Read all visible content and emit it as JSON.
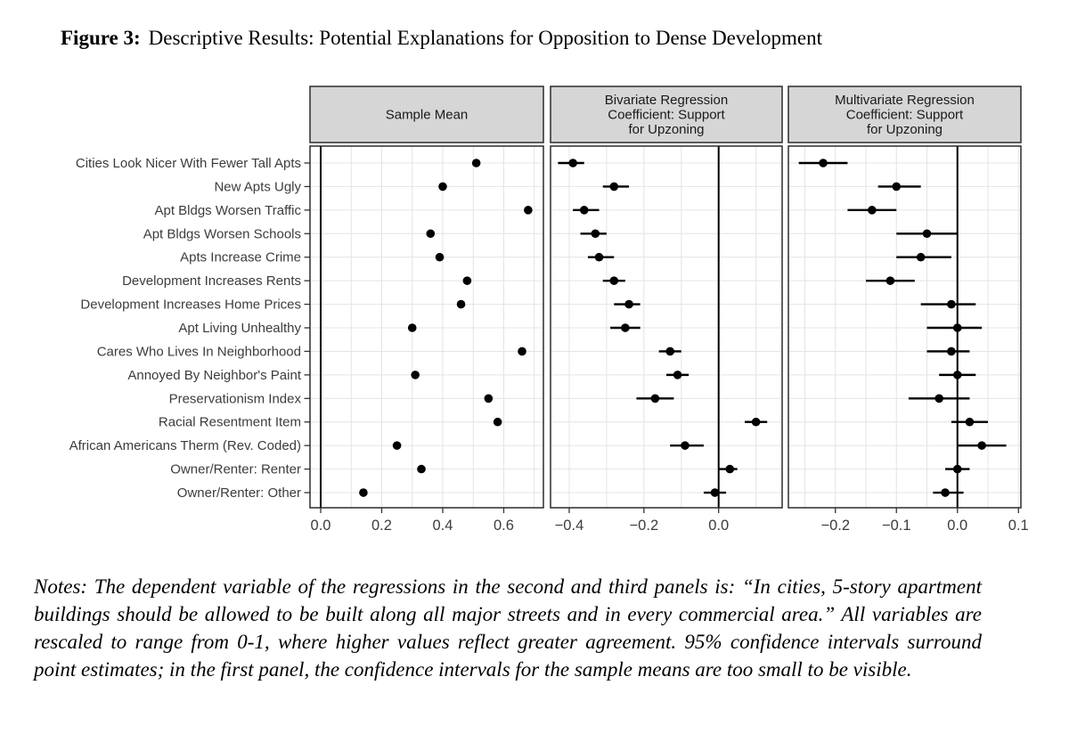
{
  "title": {
    "label": "Figure 3:",
    "caption": "Descriptive Results: Potential Explanations for Opposition to Dense Development"
  },
  "notes": "Notes:  The dependent variable of the regressions in the second and third panels is: “In cities, 5-story apartment buildings should be allowed to be built along all major streets and in every commercial area.” All variables are rescaled to range from 0-1, where higher values reflect greater agreement. 95% confidence intervals surround point estimates; in the first panel, the confidence intervals for the sample means are too small to be visible.",
  "colors": {
    "strip_fill": "#d6d6d6",
    "panel_border": "#2b2b2b",
    "grid": "#e4e4e4",
    "point": "#000000",
    "zero_line": "#000000",
    "axis_text": "#3c3c3c",
    "strip_text": "#1a1a1a",
    "tick_mark": "#333333"
  },
  "chart_data": {
    "type": "scatter",
    "subtype": "coefficient-dot-whisker",
    "title": "Figure 3: Descriptive Results: Potential Explanations for Opposition to Dense Development",
    "grid": "on",
    "rows": [
      "Cities Look Nicer With Fewer Tall Apts",
      "New Apts Ugly",
      "Apt Bldgs Worsen Traffic",
      "Apt Bldgs Worsen Schools",
      "Apts Increase Crime",
      "Development Increases Rents",
      "Development Increases Home Prices",
      "Apt Living Unhealthy",
      "Cares Who Lives In Neighborhood",
      "Annoyed By Neighbor's Paint",
      "Preservationism Index",
      "Racial Resentment Item",
      "African Americans Therm (Rev. Coded)",
      "Owner/Renter: Renter",
      "Owner/Renter: Other"
    ],
    "panels": [
      {
        "id": "sample-mean",
        "title_lines": [
          "Sample Mean"
        ],
        "xlim": [
          -0.035,
          0.73
        ],
        "ticks": [
          {
            "v": 0.0,
            "label": "0.0"
          },
          {
            "v": 0.2,
            "label": "0.2"
          },
          {
            "v": 0.4,
            "label": "0.4"
          },
          {
            "v": 0.6,
            "label": "0.6"
          }
        ],
        "grid_values": [
          0.0,
          0.1,
          0.2,
          0.3,
          0.4,
          0.5,
          0.6,
          0.7
        ],
        "zero_line": true,
        "estimates": [
          0.51,
          0.4,
          0.68,
          0.36,
          0.39,
          0.48,
          0.46,
          0.3,
          0.66,
          0.31,
          0.55,
          0.58,
          0.25,
          0.33,
          0.14
        ],
        "ci_low": null,
        "ci_high": null
      },
      {
        "id": "bivariate-regression",
        "title_lines": [
          "Bivariate Regression",
          "Coefficient: Support",
          "for Upzoning"
        ],
        "xlim": [
          -0.45,
          0.17
        ],
        "ticks": [
          {
            "v": -0.4,
            "label": "−0.4"
          },
          {
            "v": -0.2,
            "label": "−0.2"
          },
          {
            "v": 0.0,
            "label": "0.0"
          }
        ],
        "grid_values": [
          -0.4,
          -0.3,
          -0.2,
          -0.1,
          0.0,
          0.1
        ],
        "zero_line": true,
        "estimates": [
          -0.39,
          -0.28,
          -0.36,
          -0.33,
          -0.32,
          -0.28,
          -0.24,
          -0.25,
          -0.13,
          -0.11,
          -0.17,
          0.1,
          -0.09,
          0.03,
          -0.01
        ],
        "ci_low": [
          -0.43,
          -0.31,
          -0.39,
          -0.37,
          -0.35,
          -0.31,
          -0.28,
          -0.29,
          -0.16,
          -0.14,
          -0.22,
          0.07,
          -0.13,
          0.0,
          -0.04
        ],
        "ci_high": [
          -0.36,
          -0.24,
          -0.32,
          -0.3,
          -0.28,
          -0.25,
          -0.21,
          -0.21,
          -0.1,
          -0.08,
          -0.12,
          0.13,
          -0.04,
          0.05,
          0.02
        ]
      },
      {
        "id": "multivariate-regression",
        "title_lines": [
          "Multivariate Regression",
          "Coefficient: Support",
          "for Upzoning"
        ],
        "xlim": [
          -0.277,
          0.104
        ],
        "ticks": [
          {
            "v": -0.2,
            "label": "−0.2"
          },
          {
            "v": -0.1,
            "label": "−0.1"
          },
          {
            "v": 0.0,
            "label": "0.0"
          },
          {
            "v": 0.1,
            "label": "0.1"
          }
        ],
        "grid_values": [
          -0.25,
          -0.2,
          -0.15,
          -0.1,
          -0.05,
          0.0,
          0.05,
          0.1
        ],
        "zero_line": true,
        "estimates": [
          -0.22,
          -0.1,
          -0.14,
          -0.05,
          -0.06,
          -0.11,
          -0.01,
          0.0,
          -0.01,
          0.0,
          -0.03,
          0.02,
          0.04,
          0.0,
          -0.02
        ],
        "ci_low": [
          -0.26,
          -0.13,
          -0.18,
          -0.1,
          -0.1,
          -0.15,
          -0.06,
          -0.05,
          -0.05,
          -0.03,
          -0.08,
          -0.01,
          0.0,
          -0.02,
          -0.04
        ],
        "ci_high": [
          -0.18,
          -0.06,
          -0.1,
          0.0,
          -0.01,
          -0.07,
          0.03,
          0.04,
          0.02,
          0.03,
          0.02,
          0.05,
          0.08,
          0.02,
          0.01
        ]
      }
    ]
  }
}
